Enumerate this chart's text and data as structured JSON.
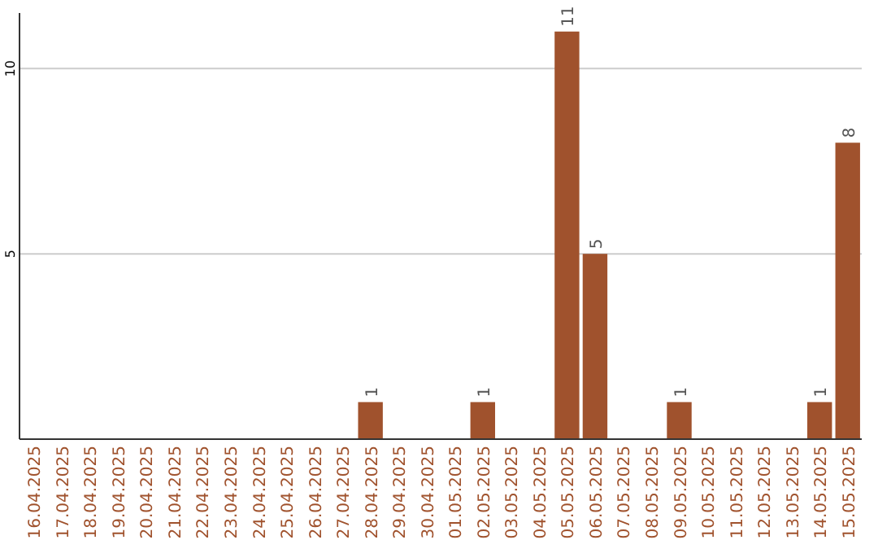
{
  "chart_data": {
    "type": "bar",
    "categories": [
      "16.04.2025",
      "17.04.2025",
      "18.04.2025",
      "19.04.2025",
      "20.04.2025",
      "21.04.2025",
      "22.04.2025",
      "23.04.2025",
      "24.04.2025",
      "25.04.2025",
      "26.04.2025",
      "27.04.2025",
      "28.04.2025",
      "29.04.2025",
      "30.04.2025",
      "01.05.2025",
      "02.05.2025",
      "03.05.2025",
      "04.05.2025",
      "05.05.2025",
      "06.05.2025",
      "07.05.2025",
      "08.05.2025",
      "09.05.2025",
      "10.05.2025",
      "11.05.2025",
      "12.05.2025",
      "13.05.2025",
      "14.05.2025",
      "15.05.2025"
    ],
    "values": [
      null,
      null,
      null,
      null,
      null,
      null,
      null,
      null,
      null,
      null,
      null,
      null,
      1,
      null,
      null,
      null,
      1,
      null,
      null,
      11,
      5,
      null,
      null,
      1,
      null,
      null,
      null,
      null,
      1,
      8
    ],
    "color": "#a0522d",
    "ylim": [
      0,
      11.5
    ],
    "yticks": [
      5,
      10
    ],
    "grid": "y",
    "data_labels": true
  }
}
